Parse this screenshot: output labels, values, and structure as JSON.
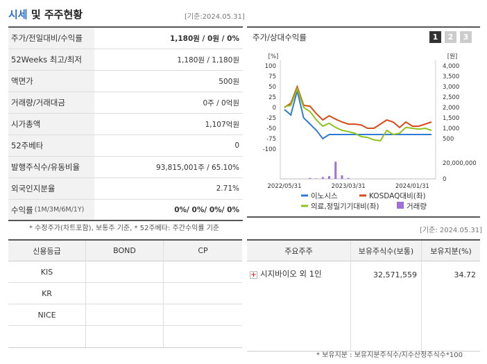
{
  "header": {
    "title_accent": "시세",
    "title_rest": " 및 주주현황",
    "ref_date": "[기준:2024.05.31]"
  },
  "price_table": [
    {
      "label": "주가/전일대비/수익률",
      "label_small": "",
      "value": "1,180원 / 0원 / 0%",
      "bold": true
    },
    {
      "label": "52Weeks 최고/최저",
      "label_small": "",
      "value": "1,180원 / 1,180원",
      "bold": false
    },
    {
      "label": "액면가",
      "label_small": "",
      "value": "500원",
      "bold": false
    },
    {
      "label": "거래량/거래대금",
      "label_small": "",
      "value": "0주 / 0억원",
      "bold": false
    },
    {
      "label": "시가총액",
      "label_small": "",
      "value": "1,107억원",
      "bold": false
    },
    {
      "label": "52주베타",
      "label_small": "",
      "value": "0",
      "bold": false
    },
    {
      "label": "발행주식수/유동비율",
      "label_small": "",
      "value": "93,815,001주 / 65.10%",
      "bold": false
    },
    {
      "label": "외국인지분율",
      "label_small": "",
      "value": "2.71%",
      "bold": false
    },
    {
      "label": "수익률",
      "label_small": "(1M/3M/6M/1Y)",
      "value": "0%/ 0%/ 0%/ 0%",
      "bold": true
    }
  ],
  "price_note": "* 수정주가(차트포함), 보통주 기준, * 52주베타: 주간수익률 기준",
  "chart_panel": {
    "title": "주가/상대수익률",
    "tabs": [
      "1",
      "2",
      "3"
    ],
    "active_tab": 0
  },
  "chart_data": {
    "type": "line",
    "left_axis_unit": "[%]",
    "right_axis_unit": "[원]",
    "left_ticks": [
      "100",
      "75",
      "50",
      "25",
      "0",
      "-25",
      "-50",
      "-75",
      "-100"
    ],
    "left_ylim": [
      -100,
      100
    ],
    "right_ticks": [
      "4,000",
      "3,500",
      "3,000",
      "2,500",
      "2,000",
      "1,500",
      "1,000",
      "500"
    ],
    "right_ylim": [
      0,
      4000
    ],
    "volume_ticks": [
      "20,000,000",
      "0"
    ],
    "volume_ylim": [
      0,
      20000000
    ],
    "x_ticks": [
      "2022/05/31",
      "2023/03/31",
      "2024/01/31"
    ],
    "x_tick_positions": [
      0,
      10,
      20
    ],
    "series": [
      {
        "name": "이노시스",
        "color": "#2e7bd6",
        "values": [
          -5,
          -18,
          40,
          -25,
          -40,
          -55,
          -75,
          -65,
          -65,
          -65,
          -65,
          -65,
          -65,
          -65,
          -65,
          -65,
          -65,
          -65,
          -65,
          -65,
          -65,
          -65,
          -65,
          -65
        ]
      },
      {
        "name": "KOSDAQ대비(좌)",
        "color": "#d84a1b",
        "values": [
          0,
          10,
          50,
          5,
          3,
          -15,
          -30,
          -20,
          -28,
          -35,
          -40,
          -40,
          -42,
          -50,
          -50,
          -40,
          -30,
          -35,
          -48,
          -35,
          -45,
          -45,
          -40,
          -35
        ]
      },
      {
        "name": "의료,정밀기기대비(좌)",
        "color": "#8ec21f",
        "values": [
          2,
          5,
          45,
          0,
          -10,
          -30,
          -45,
          -38,
          -48,
          -55,
          -58,
          -62,
          -70,
          -72,
          -78,
          -80,
          -55,
          -65,
          -62,
          -48,
          -50,
          -52,
          -50,
          -55
        ]
      }
    ],
    "volume": {
      "name": "거래량",
      "color": "#a070d8",
      "values": [
        0,
        0,
        0,
        0,
        1000000,
        500000,
        2000000,
        3000000,
        19000000,
        4000000,
        1000000,
        0,
        0,
        0,
        0,
        0,
        0,
        0,
        0,
        0,
        0,
        0,
        0,
        0
      ]
    }
  },
  "ref_date_bottom": "[기준: 2024.05.31]",
  "credit_table": {
    "headers": [
      "신용등급",
      "BOND",
      "CP"
    ],
    "rows": [
      [
        "KIS",
        "",
        ""
      ],
      [
        "KR",
        "",
        ""
      ],
      [
        "NICE",
        "",
        ""
      ],
      [
        "",
        "",
        ""
      ]
    ]
  },
  "holder_table": {
    "headers": [
      "주요주주",
      "보유주식수(보통)",
      "보유지분(%)"
    ],
    "rows": [
      {
        "name": "시지바이오 외 1인",
        "shares": "32,571,559",
        "pct": "34.72"
      }
    ],
    "expand_icon": "plus-icon",
    "note": "* 보유지분 : 보유지분주식수/지수산정주식수*100"
  }
}
